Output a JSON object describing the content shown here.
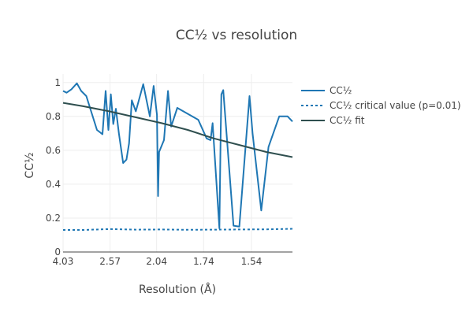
{
  "chart_data": {
    "type": "line",
    "title": "CC½ vs resolution",
    "xlabel": "Resolution (Å)",
    "ylabel": "CC½",
    "x_scale": "inverse-square resolution (1/d²)",
    "xlim_d2": [
      0.0616,
      0.5
    ],
    "ylim": [
      0,
      1.05
    ],
    "x_ticks": [
      "4.03",
      "2.57",
      "2.04",
      "1.74",
      "1.54"
    ],
    "y_ticks": [
      "0",
      "0.2",
      "0.4",
      "0.6",
      "0.8",
      "1"
    ],
    "grid": true,
    "legend_position": "right",
    "colors": {
      "cc": "#1f77b4",
      "critical": "#1f77b4",
      "fit": "#2f4f4f"
    },
    "series": [
      {
        "name": "CC½",
        "style": "solid",
        "x_d2": [
          0.0616,
          0.0684,
          0.0775,
          0.088,
          0.0963,
          0.1061,
          0.1264,
          0.137,
          0.1429,
          0.1482,
          0.1529,
          0.1575,
          0.1625,
          0.1683,
          0.1764,
          0.1828,
          0.1877,
          0.1929,
          0.2006,
          0.2148,
          0.2274,
          0.2347,
          0.241,
          0.2431,
          0.2451,
          0.2544,
          0.2621,
          0.2682,
          0.2799,
          0.32,
          0.3359,
          0.3435,
          0.3474,
          0.3604,
          0.3628,
          0.3641,
          0.3677,
          0.3873,
          0.3985,
          0.4179,
          0.4237,
          0.4403,
          0.4542,
          0.4747,
          0.4907,
          0.5
        ],
        "y": [
          0.95,
          0.94,
          0.96,
          0.995,
          0.95,
          0.92,
          0.72,
          0.695,
          0.95,
          0.72,
          0.93,
          0.755,
          0.845,
          0.7,
          0.525,
          0.545,
          0.64,
          0.895,
          0.83,
          0.99,
          0.8,
          0.98,
          0.81,
          0.33,
          0.59,
          0.66,
          0.95,
          0.74,
          0.85,
          0.78,
          0.67,
          0.66,
          0.76,
          0.14,
          0.69,
          0.93,
          0.955,
          0.155,
          0.15,
          0.92,
          0.7,
          0.245,
          0.62,
          0.8,
          0.8,
          0.77
        ]
      },
      {
        "name": "CC½ critical value (p=0.01)",
        "style": "dotted",
        "x_d2": [
          0.0616,
          0.1,
          0.15,
          0.2,
          0.25,
          0.3,
          0.35,
          0.4,
          0.45,
          0.5
        ],
        "y": [
          0.13,
          0.13,
          0.135,
          0.132,
          0.133,
          0.131,
          0.132,
          0.133,
          0.134,
          0.137
        ]
      },
      {
        "name": "CC½ fit",
        "style": "solid",
        "x_d2": [
          0.0616,
          0.1,
          0.15,
          0.2,
          0.25,
          0.3,
          0.35,
          0.4,
          0.45,
          0.5
        ],
        "y": [
          0.88,
          0.86,
          0.83,
          0.795,
          0.76,
          0.72,
          0.67,
          0.63,
          0.59,
          0.56
        ]
      }
    ]
  }
}
